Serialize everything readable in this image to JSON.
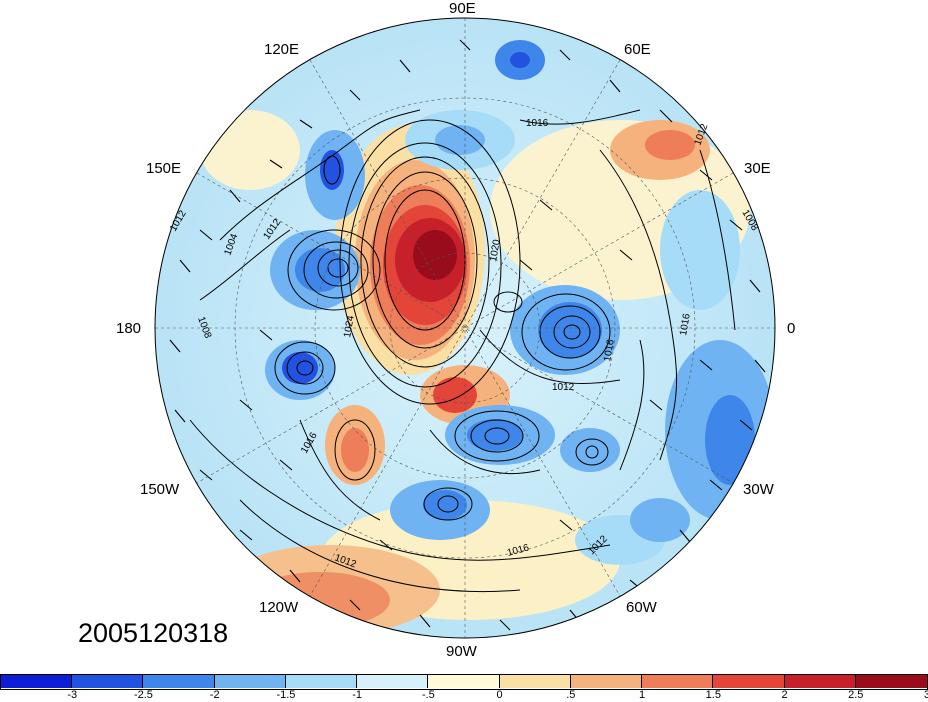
{
  "timestamp": "2005120318",
  "lon_labels": {
    "e90": "90E",
    "e60": "60E",
    "e30": "30E",
    "zero": "0",
    "w30": "30W",
    "w60": "60W",
    "w90": "90W",
    "w120": "120W",
    "w150": "150W",
    "d180": "180",
    "e150": "150E",
    "e120": "120E"
  },
  "contour_labels": [
    "1016",
    "1012",
    "1008",
    "1016",
    "1016",
    "1012",
    "1012",
    "1016",
    "1012",
    "1016",
    "1020",
    "1024",
    "1004",
    "1012",
    "1008",
    "1012"
  ],
  "colorbar": {
    "colors": [
      "#0c1ed6",
      "#2252e0",
      "#3f86ea",
      "#6fb3f2",
      "#a6dcf8",
      "#d6f1fb",
      "#fffbd9",
      "#fbe0a5",
      "#f6b27c",
      "#ee7e59",
      "#e34539",
      "#c7202a",
      "#990c1c"
    ],
    "ticks": [
      "-3",
      "-2.5",
      "-2",
      "-1.5",
      "-1",
      "-.5",
      "0",
      ".5",
      "1",
      "1.5",
      "2",
      "2.5",
      "3"
    ]
  }
}
